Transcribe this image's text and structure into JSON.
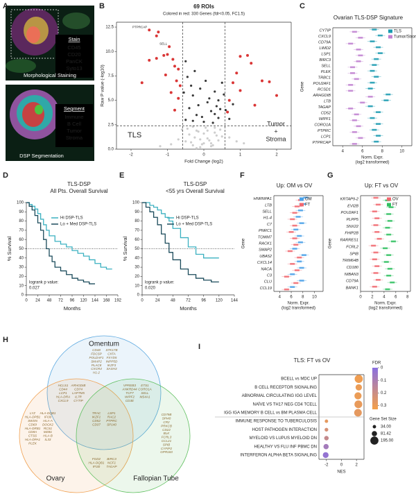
{
  "image_panel": {
    "letter": "A",
    "stain": {
      "title": "Stain",
      "items": [
        {
          "label": "CD45",
          "color": "#ff2a2a"
        },
        {
          "label": "CD20",
          "color": "#ffe000"
        },
        {
          "label": "PanCK",
          "color": "#7ddc3c"
        },
        {
          "label": "Syto13",
          "color": "#5a86ff"
        }
      ]
    },
    "caption_top": "Morphological Staining",
    "segment": {
      "title": "Segment",
      "items": [
        {
          "label": "Immune",
          "color": "#ff2a2a"
        },
        {
          "label": "B Cell",
          "color": "#3ce03c"
        },
        {
          "label": "Tumor",
          "color": "#ff40ff"
        },
        {
          "label": "Stroma",
          "color": "#c8a8e8"
        }
      ]
    },
    "caption_bottom": "DSP Segmentation"
  },
  "chart_data": [
    {
      "type": "scatter",
      "letter": "B",
      "title": "69 ROIs",
      "subtitle": "Colored in red: 330 Genes (fdr<0.05, FC1.5)",
      "xlabel": "Fold Change (log2)",
      "ylabel": "Raw P value (-log10)",
      "xlim": [
        -2.4,
        2.4
      ],
      "ylim": [
        0,
        13
      ],
      "xticks": [
        -2,
        -1,
        0,
        1,
        2
      ],
      "yticks": [
        {
          "value": 0,
          "label": "0.0"
        },
        2.5,
        {
          "value": 5,
          "label": "5.0"
        },
        7.5,
        {
          "value": 10,
          "label": "10.0"
        },
        12.5
      ],
      "thresholds": {
        "x": [
          -0.58,
          0.58
        ],
        "y": 2.4
      },
      "annotations": {
        "left": "TLS",
        "left_color": "#1aa0b0",
        "right": [
          "Tumor",
          "+",
          "Stroma"
        ],
        "right_color": "#c070d0"
      },
      "series": [
        {
          "color": "#c8c8c8",
          "x": [
            -0.5,
            -0.4,
            -0.3,
            -0.2,
            -0.1,
            0,
            0.1,
            0.2,
            0.3,
            0.4,
            0.5,
            -0.45,
            -0.35,
            -0.25,
            -0.15,
            -0.05,
            0.05,
            0.15,
            0.25,
            0.35,
            0.45,
            -0.3,
            -0.2,
            -0.1,
            0,
            0.1,
            0.2,
            0.3,
            -0.7,
            0.7,
            -0.9,
            0.9,
            -1.2,
            1.1,
            -0.6
          ],
          "y": [
            0.8,
            1.5,
            0.4,
            1.9,
            0.2,
            0.6,
            1.1,
            0.3,
            1.7,
            0.9,
            1.3,
            2.1,
            0.7,
            1.2,
            1.8,
            0.5,
            2.2,
            0.9,
            0.4,
            1.4,
            2.0,
            2.3,
            0.1,
            1.0,
            1.6,
            1.9,
            0.6,
            2.2,
            1.0,
            1.2,
            0.5,
            0.8,
            0.3,
            0.6,
            2.0
          ]
        },
        {
          "color": "#222222",
          "x": [
            -0.5,
            -0.4,
            -0.3,
            -0.2,
            -0.1,
            0,
            0.1,
            0.2,
            0.3,
            0.4,
            0.5,
            -0.45,
            -0.3,
            -0.15,
            0.15,
            0.3,
            0.45,
            -0.35,
            -0.05,
            0.05,
            0.25,
            0.4,
            -0.25,
            0.35,
            -0.55,
            0.55,
            0.6,
            0.7,
            0.8,
            -0.5
          ],
          "y": [
            3.0,
            4.2,
            5.5,
            3.5,
            6.2,
            2.8,
            4.8,
            3.9,
            5.9,
            3.2,
            6.8,
            7.4,
            2.9,
            4.5,
            5.2,
            3.6,
            4.1,
            6.5,
            3.3,
            7.0,
            2.7,
            5.0,
            8.0,
            4.4,
            5.8,
            5.6,
            4.0,
            3.1,
            4.6,
            9.0
          ]
        },
        {
          "color": "#d62020",
          "x": [
            -1.5,
            -1.25,
            -1.3,
            -0.95,
            -1.0,
            -1.1,
            -1.3,
            -0.85,
            -1.5,
            -0.8,
            -0.7,
            -1.05,
            -0.75,
            -0.65,
            -1.7,
            -0.9,
            -0.7,
            -0.8,
            1.0,
            1.2,
            1.3,
            0.9,
            1.6,
            1.8,
            0.8,
            1.0,
            2.0,
            0.7,
            1.4,
            0.65
          ],
          "y": [
            12.2,
            12.0,
            11.6,
            10.5,
            9.7,
            9.6,
            9.3,
            9.2,
            9.1,
            8.5,
            8.2,
            7.6,
            7.0,
            6.5,
            6.8,
            5.8,
            5.2,
            4.0,
            9.5,
            9.6,
            8.8,
            7.8,
            7.0,
            6.9,
            6.8,
            6.0,
            5.5,
            5.0,
            4.5,
            3.8
          ],
          "labels": [
            "PTPRCAP",
            null,
            null,
            "SELL",
            null,
            null,
            null,
            null,
            null,
            null,
            null,
            null,
            null,
            null,
            null,
            null,
            null,
            null,
            null,
            null,
            null,
            null,
            null,
            null,
            null,
            null,
            null,
            null,
            null,
            null
          ]
        }
      ]
    },
    {
      "type": "box",
      "letter": "C",
      "title": "Ovarian TLS-DSP Signature",
      "xlabel": "Norm. Expr.",
      "xlabel_sub": "(log2 transformed)",
      "ylabel": "Gene",
      "xlim": [
        3,
        11
      ],
      "xticks": [
        4,
        6,
        8,
        10
      ],
      "categories": [
        "CYTIP",
        "CXCL9",
        "CD79A",
        "LIMD2",
        "LSP1",
        "BIRC3",
        "SELL",
        "PLEK",
        "TRBC1",
        "POU2AF1",
        "RCSD1",
        "ARHGDIB",
        "LTB",
        "TAGAP",
        "CD52",
        "WIPF1",
        "CORO1A",
        "PTPRC",
        "LCP1",
        "PTPRCAP"
      ],
      "series": [
        {
          "name": "TLS",
          "color": "#1a9ab0",
          "values": [
            7.2,
            7.8,
            7.0,
            7.6,
            7.8,
            7.4,
            7.2,
            7.0,
            7.4,
            7.0,
            6.8,
            8.6,
            8.4,
            6.8,
            7.6,
            7.0,
            7.6,
            7.2,
            7.6,
            7.4
          ]
        },
        {
          "name": "Tumor/Stroma",
          "color": "#c080d0",
          "values": [
            5.2,
            5.8,
            4.8,
            5.6,
            5.8,
            5.6,
            5.0,
            5.0,
            5.4,
            4.8,
            4.8,
            6.8,
            6.0,
            4.8,
            5.4,
            5.2,
            5.6,
            5.2,
            5.8,
            5.2
          ]
        }
      ]
    },
    {
      "type": "line",
      "letter": "D",
      "title": "TLS-DSP",
      "subtitle": "All Pts. Overall Survival",
      "xlabel": "Months",
      "ylabel": "% Survival",
      "xlim": [
        0,
        192
      ],
      "ylim": [
        0,
        100
      ],
      "xticks": [
        0,
        24,
        48,
        72,
        96,
        120,
        144,
        168,
        192
      ],
      "yticks": [
        0,
        10,
        20,
        30,
        40,
        50,
        60,
        70,
        80,
        90,
        100
      ],
      "reference_line": 50,
      "annotation": [
        "logrank p value:",
        "0.027"
      ],
      "series": [
        {
          "name": "Hi DSP-TLS",
          "color": "#3ab0c0",
          "x": [
            0,
            6,
            12,
            18,
            24,
            30,
            36,
            42,
            48,
            60,
            72,
            84,
            96,
            108,
            120,
            132,
            144,
            156,
            168,
            180
          ],
          "y": [
            100,
            98,
            96,
            93,
            88,
            82,
            76,
            70,
            64,
            58,
            55,
            52,
            48,
            45,
            42,
            38,
            34,
            30,
            28,
            28
          ]
        },
        {
          "name": "Lo + Med DSP-TLS",
          "color": "#1a4a5a",
          "x": [
            0,
            6,
            12,
            18,
            24,
            30,
            36,
            42,
            48,
            54,
            60,
            72,
            84,
            96,
            108,
            120,
            132,
            144
          ],
          "y": [
            100,
            96,
            92,
            86,
            78,
            70,
            60,
            50,
            42,
            36,
            30,
            26,
            22,
            18,
            16,
            14,
            12,
            12
          ]
        }
      ]
    },
    {
      "type": "line",
      "letter": "E",
      "title": "TLS-DSP",
      "subtitle": "<55 yrs Overall Survival",
      "xlabel": "Months",
      "ylabel": "% Survival",
      "xlim": [
        0,
        144
      ],
      "ylim": [
        0,
        100
      ],
      "xticks": [
        0,
        24,
        48,
        72,
        96,
        120,
        144
      ],
      "yticks": [
        0,
        10,
        20,
        30,
        40,
        50,
        60,
        70,
        80,
        90,
        100
      ],
      "reference_line": 50,
      "annotation": [
        "logrank p value:",
        "0.020"
      ],
      "series": [
        {
          "name": "Hi DSP-TLS",
          "color": "#3ab0c0",
          "x": [
            0,
            6,
            12,
            18,
            24,
            30,
            36,
            42,
            48,
            60,
            72,
            84,
            96,
            108,
            120
          ],
          "y": [
            100,
            100,
            97,
            95,
            92,
            88,
            84,
            80,
            72,
            62,
            52,
            44,
            40,
            40,
            40
          ]
        },
        {
          "name": "Lo + Med DSP-TLS",
          "color": "#1a4a5a",
          "x": [
            0,
            6,
            12,
            18,
            24,
            30,
            36,
            42,
            48,
            60,
            72,
            84,
            96,
            108,
            120
          ],
          "y": [
            100,
            95,
            90,
            84,
            76,
            66,
            56,
            46,
            38,
            28,
            22,
            18,
            16,
            14,
            14
          ]
        }
      ]
    },
    {
      "type": "box",
      "letter": "F",
      "title": "Up: OM vs OV",
      "xlabel": "Norm. Expr.",
      "xlabel_sub": "(log2 transformed)",
      "ylabel": "Gene",
      "xlim": [
        3,
        11.5
      ],
      "xticks": [
        4,
        6,
        8,
        10
      ],
      "categories": [
        "HNRNPA1",
        "LTB",
        "SELL",
        "H1-4",
        "C7",
        "PNRC1",
        "TOMM7",
        "RACK1",
        "SMAP2",
        "UBA52",
        "CXCL14",
        "NACA",
        "C3",
        "CLU",
        "CCL19"
      ],
      "series": [
        {
          "name": "OM",
          "color": "#4aa0e8",
          "values": [
            8.5,
            8.0,
            7.6,
            7.2,
            7.8,
            6.8,
            7.4,
            7.6,
            6.6,
            8.2,
            7.4,
            7.8,
            6.2,
            7.8,
            6.2
          ]
        },
        {
          "name": "FT",
          "color": "#f06870",
          "values": [
            7.6,
            7.0,
            6.6,
            6.2,
            6.6,
            6.0,
            6.6,
            6.8,
            5.8,
            7.4,
            6.2,
            7.0,
            5.2,
            6.8,
            5.2
          ]
        }
      ]
    },
    {
      "type": "box",
      "letter": "G",
      "title": "Up: FT vs OV",
      "xlabel": "Norm. Expr.",
      "xlabel_sub": "(log2 transformed)",
      "ylabel": "Gene",
      "xlim": [
        0,
        8.5
      ],
      "xticks": [
        0,
        2,
        4,
        6,
        8
      ],
      "categories": [
        "KRTAP9-2",
        "EVI2B",
        "POU2AF1",
        "PLPP5",
        "SNX22",
        "FHIP2B",
        "RARRES1",
        "FCRL2",
        "SPIB",
        "TRIM64B",
        "CD180",
        "NIBAN3",
        "CD79A",
        "BANK1"
      ],
      "series": [
        {
          "name": "OV",
          "color": "#f06870",
          "values": [
            2.6,
            3.0,
            2.4,
            2.8,
            2.6,
            2.8,
            3.2,
            2.2,
            2.6,
            2.4,
            2.8,
            2.6,
            3.0,
            2.4
          ]
        },
        {
          "name": "FT",
          "color": "#30c060",
          "values": [
            4.6,
            5.2,
            4.8,
            5.0,
            4.6,
            4.8,
            5.6,
            4.2,
            4.8,
            4.4,
            5.0,
            4.8,
            5.4,
            4.6
          ]
        }
      ]
    },
    {
      "type": "dot",
      "letter": "I",
      "title": "TLS: FT vs OV",
      "xlabel": "NES",
      "xlim": [
        -3,
        3
      ],
      "xticks": [
        -2,
        0,
        2
      ],
      "categories": [
        "BCELL vs MDC UP",
        "B CELL RECEPTOR SIGNALING",
        "ABNORMAL CIRCULATING IGG LEVEL",
        "NAÏVE VS TH17 NEG CD4 TCELL",
        "IGG IGA MEMORY B CELL vs BM PLASMA CELL",
        "IMMUNE RESPONSE TO TUBERCULOSIS",
        "HOST PATHOGEN INTERACTION",
        "MYELOID VS LUPUS MYELOID DN",
        "HEALTHY VS FLU INF PBMC DN",
        "INTERFERON ALPHA BETA SIGNALING"
      ],
      "values": [
        2.3,
        2.3,
        2.2,
        2.25,
        2.2,
        -2.0,
        -2.0,
        -2.0,
        -2.05,
        -2.1
      ],
      "fdr": [
        0.02,
        0.03,
        0.03,
        0.04,
        0.05,
        0.05,
        0.1,
        0.15,
        0.25,
        0.3
      ],
      "size": [
        195,
        120,
        150,
        180,
        170,
        34,
        40,
        60,
        81.42,
        100
      ],
      "fdr_title": "FDR",
      "fdr_lim": [
        0,
        0.33
      ],
      "fdr_ticks": [
        0,
        0.1,
        0.2,
        0.3
      ],
      "fdr_colors": [
        "#f5a048",
        "#8a70e0"
      ],
      "size_title": "Gene Set Size",
      "size_legend": [
        {
          "value": 34,
          "label": "34.00"
        },
        {
          "value": 81.42,
          "label": "81.42"
        },
        {
          "value": 195,
          "label": "195.00"
        }
      ]
    }
  ],
  "venn": {
    "letter": "H",
    "sets": [
      {
        "name": "Omentum",
        "color": "#5aa8e0"
      },
      {
        "name": "Ovary",
        "color": "#f0a050"
      },
      {
        "name": "Fallopian Tube",
        "color": "#60c060"
      }
    ],
    "regions": [
      {
        "lines": [
          "CD48",
          "FDCSP",
          "POU2AF1",
          "SMAP2",
          "PLAC8",
          "CXCR4",
          "H1-2",
          "STK17B",
          "CIITA",
          "FXYD5",
          "INPP5D",
          "IKZF3",
          "SASH3"
        ]
      },
      {
        "lines": [
          "LYZ",
          "HLA-DPB1",
          "SWSN",
          "CD69",
          "HLA-DRB1",
          "CD8A",
          "CTSS",
          "HLA-DPA1",
          "PLEK",
          "HLA-DQB1",
          "IFI30",
          "HLA-A",
          "DOCK2",
          "RCS1",
          "MZB1",
          "HLA-B",
          "IL33"
        ]
      },
      {
        "lines": [
          "CD79B",
          "SPI40",
          "CR2",
          "PRKCB",
          "CD22",
          "BLK",
          "FCRL3",
          "CCL21",
          "SPIB",
          "CYFIP2",
          "GPR183"
        ]
      },
      {
        "lines": [
          "HCLS1",
          "CD44",
          "LCP1",
          "HLA-DRA",
          "CXCL9",
          "ARHGDIB",
          "CD74",
          "LAPTM5",
          "IL7R",
          "CYTIP"
        ]
      },
      {
        "lines": [
          "VPREB3",
          "ANKRD44",
          "TCF7",
          "WIPF2",
          "CD3E",
          "ETS1",
          "CORO1A",
          "SELL",
          "MS4A1"
        ]
      },
      {
        "lines": [
          "FGD2",
          "HLA-DQB1",
          "IFI30",
          "BIRC3",
          "NCF1",
          "TAGAP"
        ]
      },
      {
        "lines": [
          "TRAC",
          "IKZF1",
          "CD52",
          "CD37",
          "LSP1",
          "RAC2",
          "PTPRC",
          "SP140"
        ]
      }
    ]
  }
}
